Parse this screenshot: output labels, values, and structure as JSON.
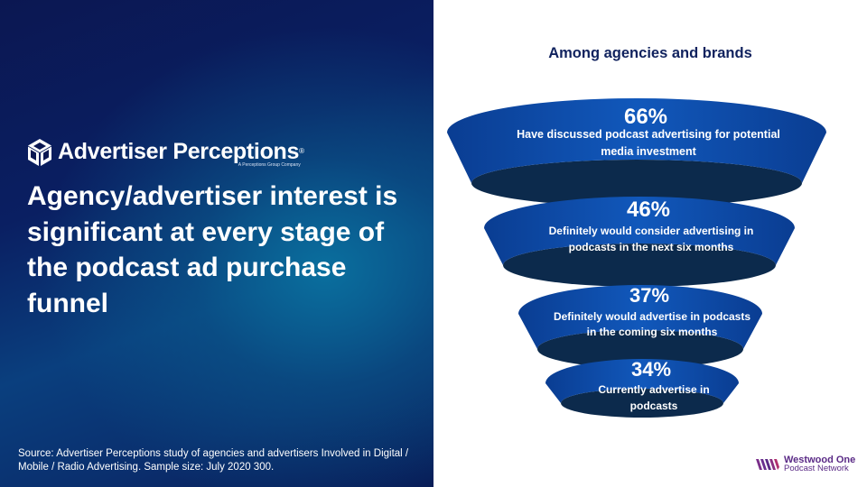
{
  "slide": {
    "brand": {
      "name": "Advertiser Perceptions",
      "registered_mark": "®",
      "tagline": "A Perceptions Group Company"
    },
    "headline": "Agency/advertiser interest is significant at every stage of the podcast ad purchase funnel",
    "source_note": "Source: Advertiser Perceptions study of agencies and advertisers Involved in Digital / Mobile / Radio Advertising. Sample size: July 2020 300.",
    "funnel_title": "Among agencies and brands",
    "footer_logo": {
      "name": "Westwood One",
      "tagline": "Podcast Network"
    },
    "colors": {
      "funnel_blue": "#0b4aa6",
      "funnel_dark": "#0c2a4c",
      "panel_navy": "#0b1752",
      "logo_purple": "#5a2a86"
    }
  },
  "chart_data": {
    "type": "funnel",
    "title": "Among agencies and brands",
    "stages": [
      {
        "value": "66%",
        "label": "Have discussed podcast advertising for potential media investment",
        "label_lines": [
          "Have discussed podcast advertising for potential",
          "media investment"
        ]
      },
      {
        "value": "46%",
        "label": "Definitely would consider advertising in podcasts in the next six months",
        "label_lines": [
          "Definitely would consider advertising in",
          "podcasts in the next six months"
        ]
      },
      {
        "value": "37%",
        "label": "Definitely would advertise in podcasts in the coming six months",
        "label_lines": [
          "Definitely would advertise  in podcasts",
          "in the coming six months"
        ]
      },
      {
        "value": "34%",
        "label": "Currently advertise in podcasts",
        "label_lines": [
          "Currently advertise  in",
          "podcasts"
        ]
      }
    ]
  }
}
